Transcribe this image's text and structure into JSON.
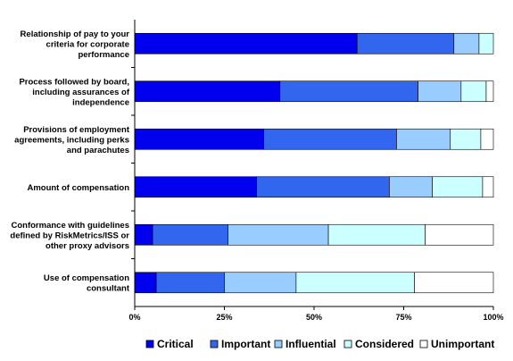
{
  "chart_data": {
    "type": "bar",
    "orientation": "horizontal",
    "stacked": true,
    "percent_stacked": true,
    "categories": [
      [
        "Relationship of pay to your",
        "criteria for corporate",
        "performance"
      ],
      [
        "Process followed by board,",
        "including assurances of",
        "independence"
      ],
      [
        "Provisions of employment",
        "agreements, including perks",
        "and parachutes"
      ],
      [
        "Amount of compensation"
      ],
      [
        "Conformance with guidelines",
        "defined by RiskMetrics/ISS or",
        "other proxy advisors"
      ],
      [
        "Use of compensation",
        "consultant"
      ]
    ],
    "series": [
      {
        "name": "Critical",
        "color": "#0000ee",
        "values": [
          62,
          40.5,
          36,
          34,
          5,
          6
        ]
      },
      {
        "name": "Important",
        "color": "#3366ee",
        "values": [
          27,
          38.5,
          37,
          37,
          21,
          19
        ]
      },
      {
        "name": "Influential",
        "color": "#99ccff",
        "values": [
          7,
          12,
          15,
          12,
          28,
          20
        ]
      },
      {
        "name": "Considered",
        "color": "#ccffff",
        "values": [
          4,
          7,
          8.5,
          14,
          27,
          33
        ]
      },
      {
        "name": "Unimportant",
        "color": "#ffffff",
        "values": [
          0,
          2,
          3.5,
          3,
          19,
          22
        ]
      }
    ],
    "x_ticks": [
      "0%",
      "25%",
      "50%",
      "75%",
      "100%"
    ],
    "xlim": [
      0,
      100
    ],
    "grid": false,
    "legend_position": "bottom"
  }
}
